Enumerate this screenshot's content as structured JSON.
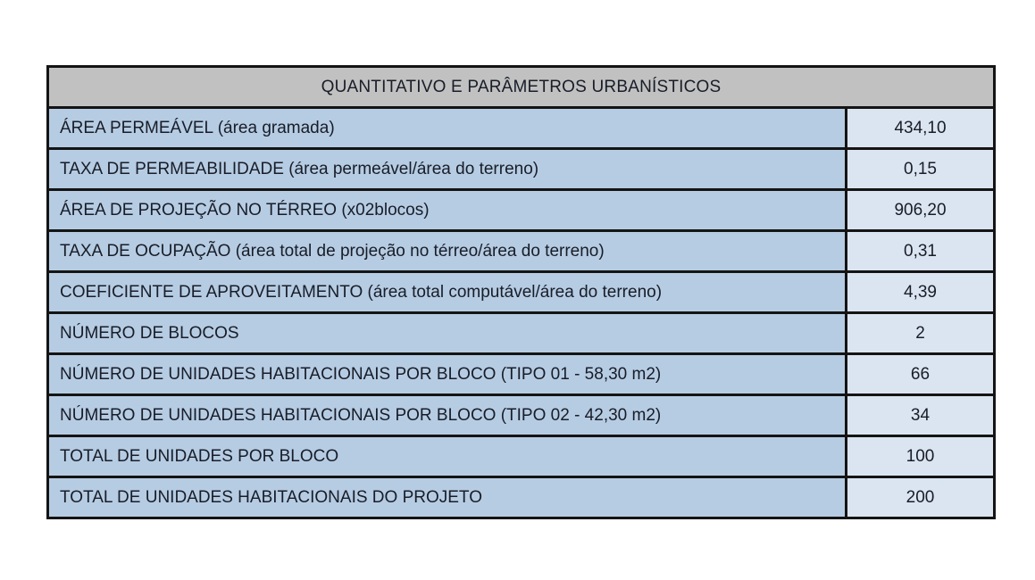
{
  "table": {
    "title": "QUANTITATIVO E PARÂMETROS URBANÍSTICOS",
    "rows": [
      {
        "label": "ÁREA PERMEÁVEL (área gramada)",
        "value": "434,10"
      },
      {
        "label": "TAXA DE PERMEABILIDADE (área permeável/área do terreno)",
        "value": "0,15"
      },
      {
        "label": "ÁREA DE PROJEÇÃO NO TÉRREO (x02blocos)",
        "value": "906,20"
      },
      {
        "label": "TAXA DE OCUPAÇÃO (área total de projeção no térreo/área do terreno)",
        "value": "0,31"
      },
      {
        "label": "COEFICIENTE DE APROVEITAMENTO (área total computável/área do terreno)",
        "value": "4,39"
      },
      {
        "label": "NÚMERO DE BLOCOS",
        "value": "2"
      },
      {
        "label": "NÚMERO DE UNIDADES HABITACIONAIS POR BLOCO (TIPO 01 - 58,30 m2)",
        "value": "66"
      },
      {
        "label": "NÚMERO DE UNIDADES HABITACIONAIS POR BLOCO (TIPO 02 - 42,30 m2)",
        "value": "34"
      },
      {
        "label": "TOTAL DE UNIDADES POR BLOCO",
        "value": "100"
      },
      {
        "label": "TOTAL DE UNIDADES HABITACIONAIS DO PROJETO",
        "value": "200"
      }
    ],
    "colors": {
      "header_bg": "#c1c1c1",
      "label_bg": "#b6cce3",
      "value_bg": "#dbe5f1",
      "border": "#141414",
      "text": "#181d28",
      "page_bg": "#ffffff"
    }
  }
}
